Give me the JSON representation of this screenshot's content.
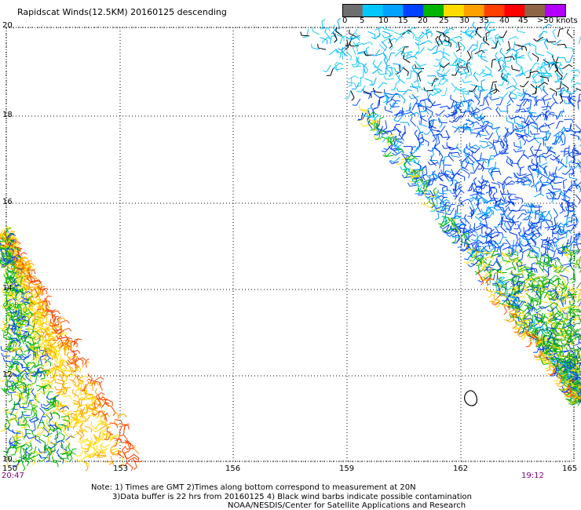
{
  "title": "Rapidscat Winds(12.5KM) 20160125 descending",
  "legend": {
    "labels": [
      "0",
      "5",
      "10",
      "15",
      "20",
      "25",
      "30",
      "35",
      "40",
      "45",
      ">50 knots"
    ],
    "colors": [
      "#6e6e6e",
      "#00c8ff",
      "#00a0ff",
      "#0040ff",
      "#00b400",
      "#ffdc00",
      "#ffa000",
      "#ff4000",
      "#ff0000",
      "#8c6446",
      "#b400ff"
    ]
  },
  "y_ticks": [
    "20",
    "18",
    "16",
    "14",
    "12",
    "10"
  ],
  "x_ticks": [
    "150",
    "153",
    "156",
    "159",
    "162",
    "165"
  ],
  "times": {
    "left": "20:47",
    "right": "19:12"
  },
  "notes": [
    "Note: 1) Times are GMT 2)Times along bottom correspond to measurement at 20N",
    "3)Data buffer is 22 hrs from 20160125 4) Black wind barbs indicate possible contamination",
    "NOAA/NESDIS/Center for Satellite Applications and Research"
  ]
}
